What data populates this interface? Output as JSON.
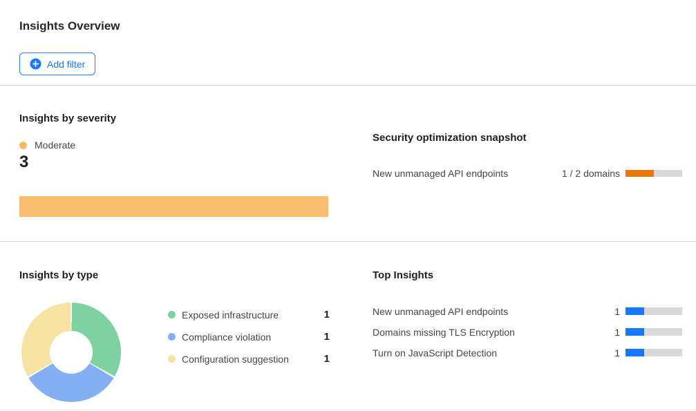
{
  "header": {
    "title": "Insights Overview",
    "add_filter_label": "Add filter"
  },
  "colors": {
    "accent_blue": "#1677ff",
    "severity_orange": "#f9bf70",
    "snapshot_orange": "#e8790b",
    "bar_track_gray": "#d9d9d9",
    "type_green": "#7ed2a2",
    "type_blue": "#84aff3",
    "type_yellow": "#f7e3a3",
    "moderate_dot_orange": "#f6ba67"
  },
  "icons": {
    "add_filter": "plus-circle-icon"
  },
  "severity_card": {
    "title": "Insights by severity",
    "legend_label": "Moderate",
    "legend_color": "#f6ba67",
    "count": "3",
    "bar": {
      "value": 3,
      "max": 3,
      "color": "#f9bf70"
    }
  },
  "snapshot_card": {
    "title": "Security optimization snapshot",
    "row": {
      "label": "New unmanaged API endpoints",
      "value_text": "1 / 2 domains",
      "bar": {
        "value": 1,
        "max": 2,
        "color": "#e8790b"
      }
    }
  },
  "type_card": {
    "title": "Insights by type",
    "donut": {
      "values": [
        1,
        1,
        1
      ],
      "colors": [
        "#7ed2a2",
        "#84aff3",
        "#f7e3a3"
      ],
      "gap_deg": 2
    },
    "legend": [
      {
        "label": "Exposed infrastructure",
        "count": "1",
        "color": "#7ed2a2"
      },
      {
        "label": "Compliance violation",
        "count": "1",
        "color": "#84aff3"
      },
      {
        "label": "Configuration suggestion",
        "count": "1",
        "color": "#f7e3a3"
      }
    ]
  },
  "top_insights_card": {
    "title": "Top Insights",
    "rows": [
      {
        "label": "New unmanaged API endpoints",
        "value": "1",
        "bar": {
          "value": 1,
          "max": 3,
          "color": "#1677ff"
        }
      },
      {
        "label": "Domains missing TLS Encryption",
        "value": "1",
        "bar": {
          "value": 1,
          "max": 3,
          "color": "#1677ff"
        }
      },
      {
        "label": "Turn on JavaScript Detection",
        "value": "1",
        "bar": {
          "value": 1,
          "max": 3,
          "color": "#1677ff"
        }
      }
    ]
  },
  "chart_data": [
    {
      "type": "bar",
      "title": "Insights by severity",
      "categories": [
        "Moderate"
      ],
      "values": [
        3
      ],
      "colors": [
        "#f9bf70"
      ],
      "orientation": "horizontal",
      "xlim": [
        0,
        3
      ],
      "legend": [
        "Moderate"
      ],
      "annotations": [
        "3"
      ]
    },
    {
      "type": "pie",
      "title": "Insights by type",
      "categories": [
        "Exposed infrastructure",
        "Compliance violation",
        "Configuration suggestion"
      ],
      "values": [
        1,
        1,
        1
      ],
      "colors": [
        "#7ed2a2",
        "#84aff3",
        "#f7e3a3"
      ],
      "donut": true,
      "legend_position": "right"
    },
    {
      "type": "bar",
      "title": "Security optimization snapshot",
      "categories": [
        "New unmanaged API endpoints"
      ],
      "values": [
        1
      ],
      "max_values": [
        2
      ],
      "value_labels": [
        "1 / 2 domains"
      ],
      "colors": [
        "#e8790b"
      ],
      "orientation": "horizontal"
    },
    {
      "type": "bar",
      "title": "Top Insights",
      "categories": [
        "New unmanaged API endpoints",
        "Domains missing TLS Encryption",
        "Turn on JavaScript Detection"
      ],
      "values": [
        1,
        1,
        1
      ],
      "xlim": [
        0,
        3
      ],
      "colors": [
        "#1677ff",
        "#1677ff",
        "#1677ff"
      ],
      "orientation": "horizontal"
    }
  ]
}
